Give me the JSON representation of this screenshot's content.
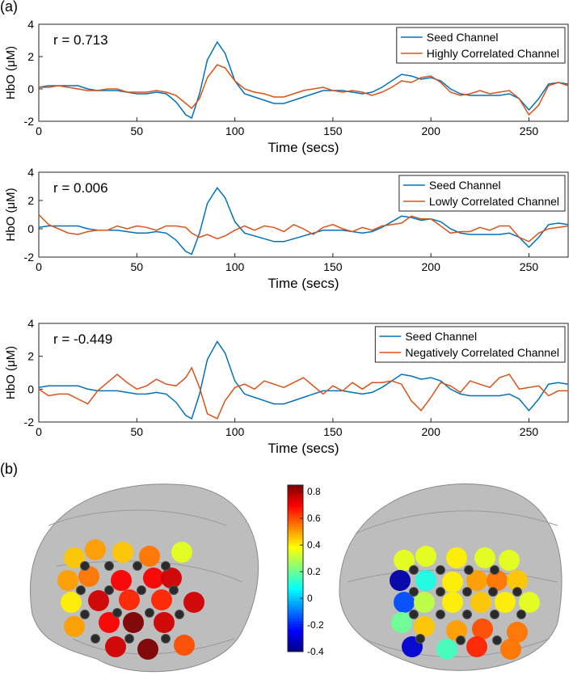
{
  "panel_labels": [
    "(a)",
    "(b)"
  ],
  "chart_data": [
    {
      "type": "line",
      "annotation": "r = 0.713",
      "xlabel": "Time (secs)",
      "ylabel": "HbO (μM)",
      "xlim": [
        0,
        270
      ],
      "ylim": [
        -2,
        4
      ],
      "xticks": [
        0,
        50,
        100,
        150,
        200,
        250
      ],
      "yticks": [
        -2,
        0,
        2,
        4
      ],
      "legend": "upper right",
      "x": [
        0,
        5,
        10,
        15,
        20,
        25,
        30,
        35,
        40,
        45,
        50,
        55,
        60,
        65,
        70,
        75,
        78,
        82,
        86,
        91,
        95,
        100,
        105,
        110,
        115,
        120,
        125,
        130,
        135,
        140,
        145,
        150,
        155,
        160,
        165,
        170,
        175,
        180,
        185,
        190,
        195,
        200,
        205,
        210,
        215,
        220,
        225,
        230,
        235,
        240,
        245,
        250,
        255,
        260,
        265,
        270
      ],
      "series": [
        {
          "name": "Seed Channel",
          "color": "#0072bd",
          "values": [
            0.1,
            0.2,
            0.2,
            0.2,
            0.2,
            0.0,
            -0.1,
            -0.1,
            -0.1,
            -0.2,
            -0.3,
            -0.3,
            -0.2,
            -0.3,
            -0.8,
            -1.6,
            -1.8,
            -0.3,
            1.8,
            2.9,
            2.2,
            0.5,
            -0.3,
            -0.5,
            -0.7,
            -0.9,
            -0.9,
            -0.7,
            -0.5,
            -0.3,
            -0.1,
            -0.1,
            -0.1,
            -0.2,
            -0.3,
            -0.2,
            0.1,
            0.5,
            0.9,
            0.8,
            0.6,
            0.7,
            0.5,
            0.0,
            -0.3,
            -0.4,
            -0.4,
            -0.4,
            -0.4,
            -0.3,
            -0.6,
            -1.3,
            -0.6,
            0.3,
            0.4,
            0.3
          ]
        },
        {
          "name": "Highly Correlated Channel",
          "color": "#d95319",
          "values": [
            0.1,
            0.1,
            0.2,
            0.1,
            0.0,
            -0.1,
            -0.1,
            0.0,
            0.0,
            -0.2,
            -0.2,
            -0.2,
            -0.1,
            -0.2,
            -0.4,
            -0.9,
            -1.2,
            -0.6,
            0.7,
            1.5,
            1.3,
            0.5,
            0.0,
            -0.2,
            -0.3,
            -0.5,
            -0.5,
            -0.3,
            -0.1,
            0.0,
            0.1,
            -0.1,
            -0.2,
            -0.1,
            -0.2,
            -0.4,
            -0.2,
            0.1,
            0.5,
            0.4,
            0.7,
            0.8,
            0.4,
            -0.2,
            -0.4,
            -0.3,
            -0.1,
            -0.3,
            -0.2,
            -0.1,
            -0.6,
            -1.6,
            -1.0,
            0.2,
            0.4,
            0.2
          ]
        }
      ]
    },
    {
      "type": "line",
      "annotation": "r = 0.006",
      "xlabel": "Time (secs)",
      "ylabel": "HbO (μM)",
      "xlim": [
        0,
        270
      ],
      "ylim": [
        -2,
        4
      ],
      "xticks": [
        0,
        50,
        100,
        150,
        200,
        250
      ],
      "yticks": [
        -2,
        0,
        2,
        4
      ],
      "legend": "upper right",
      "x": [
        0,
        5,
        10,
        15,
        20,
        25,
        30,
        35,
        40,
        45,
        50,
        55,
        60,
        65,
        70,
        75,
        78,
        82,
        86,
        91,
        95,
        100,
        105,
        110,
        115,
        120,
        125,
        130,
        135,
        140,
        145,
        150,
        155,
        160,
        165,
        170,
        175,
        180,
        185,
        190,
        195,
        200,
        205,
        210,
        215,
        220,
        225,
        230,
        235,
        240,
        245,
        250,
        255,
        260,
        265,
        270
      ],
      "series": [
        {
          "name": "Seed Channel",
          "color": "#0072bd",
          "values": [
            0.1,
            0.2,
            0.2,
            0.2,
            0.2,
            0.0,
            -0.1,
            -0.1,
            -0.1,
            -0.2,
            -0.3,
            -0.3,
            -0.2,
            -0.3,
            -0.8,
            -1.6,
            -1.8,
            -0.3,
            1.8,
            2.9,
            2.2,
            0.5,
            -0.3,
            -0.5,
            -0.7,
            -0.9,
            -0.9,
            -0.7,
            -0.5,
            -0.3,
            -0.1,
            -0.1,
            -0.1,
            -0.2,
            -0.3,
            -0.2,
            0.1,
            0.5,
            0.9,
            0.8,
            0.6,
            0.7,
            0.5,
            0.0,
            -0.3,
            -0.4,
            -0.4,
            -0.4,
            -0.4,
            -0.3,
            -0.6,
            -1.3,
            -0.6,
            0.3,
            0.4,
            0.3
          ]
        },
        {
          "name": "Lowly Correlated Channel",
          "color": "#d95319",
          "values": [
            1.0,
            0.3,
            0.0,
            -0.3,
            -0.4,
            -0.2,
            -0.1,
            -0.1,
            0.2,
            0.0,
            0.2,
            0.1,
            -0.1,
            0.2,
            0.2,
            0.1,
            -0.3,
            -0.6,
            -0.4,
            -0.7,
            -0.5,
            -0.1,
            0.2,
            -0.1,
            0.2,
            0.1,
            -0.2,
            0.3,
            0.0,
            -0.4,
            0.1,
            0.3,
            0.0,
            -0.2,
            0.1,
            -0.1,
            0.2,
            0.3,
            0.4,
            0.9,
            0.7,
            0.7,
            0.2,
            -0.3,
            -0.2,
            -0.2,
            0.1,
            -0.1,
            0.2,
            0.2,
            -0.6,
            -0.9,
            -0.3,
            0.0,
            0.1,
            0.2
          ]
        }
      ]
    },
    {
      "type": "line",
      "annotation": "r = -0.449",
      "xlabel": "Time (secs)",
      "ylabel": "HbO (μM)",
      "xlim": [
        0,
        270
      ],
      "ylim": [
        -2,
        4
      ],
      "xticks": [
        0,
        50,
        100,
        150,
        200,
        250
      ],
      "yticks": [
        -2,
        0,
        2,
        4
      ],
      "legend": "upper right",
      "x": [
        0,
        5,
        10,
        15,
        20,
        25,
        30,
        35,
        40,
        45,
        50,
        55,
        60,
        65,
        70,
        75,
        78,
        82,
        86,
        91,
        95,
        100,
        105,
        110,
        115,
        120,
        125,
        130,
        135,
        140,
        145,
        150,
        155,
        160,
        165,
        170,
        175,
        180,
        185,
        190,
        195,
        200,
        205,
        210,
        215,
        220,
        225,
        230,
        235,
        240,
        245,
        250,
        255,
        260,
        265,
        270
      ],
      "series": [
        {
          "name": "Seed Channel",
          "color": "#0072bd",
          "values": [
            0.1,
            0.2,
            0.2,
            0.2,
            0.2,
            0.0,
            -0.1,
            -0.1,
            -0.1,
            -0.2,
            -0.3,
            -0.3,
            -0.2,
            -0.3,
            -0.8,
            -1.6,
            -1.8,
            -0.3,
            1.8,
            2.9,
            2.2,
            0.5,
            -0.3,
            -0.5,
            -0.7,
            -0.9,
            -0.9,
            -0.7,
            -0.5,
            -0.3,
            -0.1,
            -0.1,
            -0.1,
            -0.2,
            -0.3,
            -0.2,
            0.1,
            0.5,
            0.9,
            0.8,
            0.6,
            0.7,
            0.5,
            0.0,
            -0.3,
            -0.4,
            -0.4,
            -0.4,
            -0.4,
            -0.3,
            -0.6,
            -1.3,
            -0.6,
            0.3,
            0.4,
            0.3
          ]
        },
        {
          "name": "Negatively Correlated Channel",
          "color": "#d95319",
          "values": [
            0.0,
            -0.4,
            -0.3,
            -0.3,
            -0.6,
            -0.9,
            -0.1,
            0.4,
            0.9,
            0.4,
            0.0,
            0.2,
            0.6,
            0.3,
            0.2,
            0.7,
            1.3,
            0.1,
            -1.5,
            -1.8,
            -0.7,
            0.1,
            0.3,
            0.0,
            0.5,
            0.3,
            0.1,
            0.4,
            0.7,
            0.2,
            -0.3,
            0.2,
            -0.1,
            0.4,
            0.0,
            0.4,
            0.4,
            0.5,
            0.3,
            -0.7,
            -1.3,
            -0.5,
            0.4,
            0.2,
            -0.2,
            0.5,
            0.3,
            0.1,
            0.7,
            0.9,
            0.0,
            0.1,
            0.2,
            -0.4,
            -0.1,
            -0.1
          ]
        }
      ]
    },
    {
      "type": "brain-map",
      "colormap": "jet",
      "clim": [
        -0.4,
        0.85
      ],
      "cticks": [
        -0.4,
        -0.2,
        0,
        0.2,
        0.4,
        0.6,
        0.8
      ],
      "left": [
        0.45,
        0.5,
        0.45,
        0.55,
        0.35,
        0.5,
        0.55,
        0.7,
        0.7,
        0.75,
        0.4,
        0.75,
        0.65,
        0.65,
        0.75,
        0.5,
        0.7,
        0.85,
        0.75,
        0.75,
        0.85,
        0.6
      ],
      "right": [
        0.35,
        0.35,
        0.4,
        0.35,
        0.35,
        -0.35,
        0.1,
        0.4,
        0.5,
        0.55,
        0.45,
        -0.15,
        0.3,
        0.4,
        0.45,
        0.4,
        0.35,
        0.2,
        0.45,
        0.5,
        0.6,
        0.55,
        -0.3,
        0.15,
        0.65,
        0.55
      ]
    }
  ]
}
